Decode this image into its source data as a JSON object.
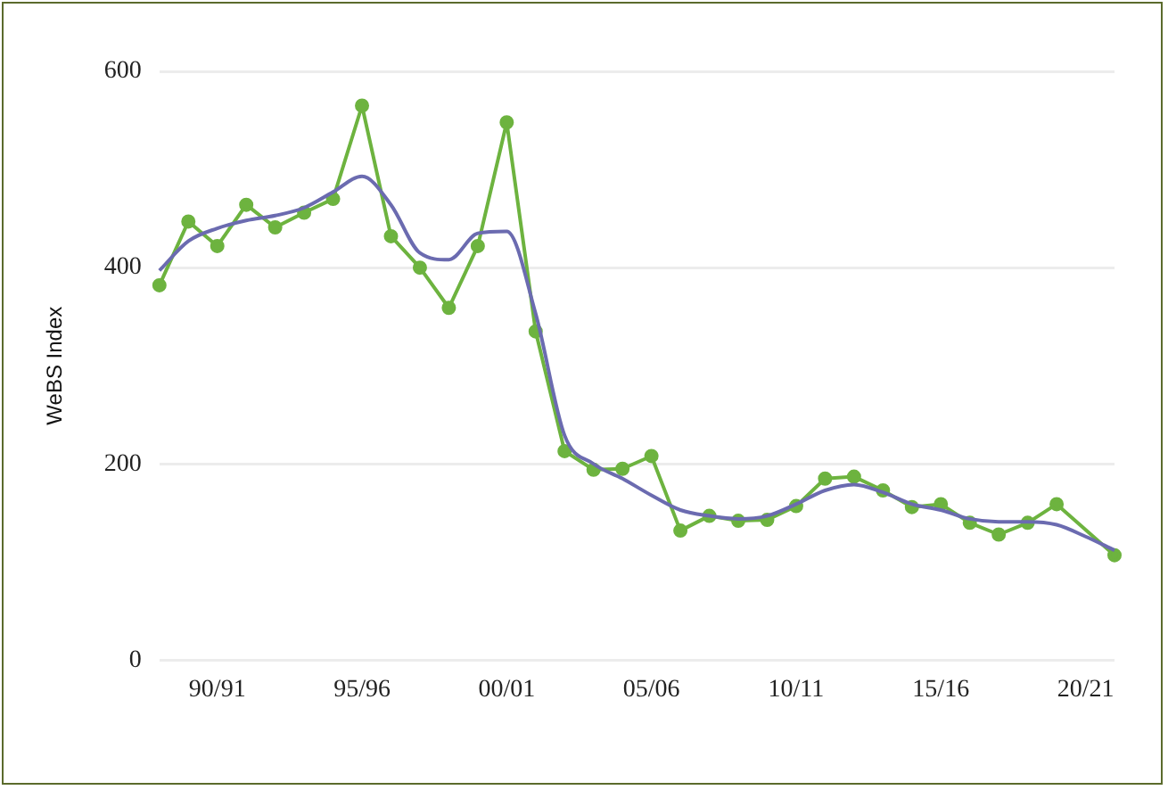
{
  "chart_data": {
    "type": "line",
    "ylabel": "WeBS Index",
    "categories": [
      null,
      null,
      "90/91",
      null,
      null,
      null,
      null,
      "95/96",
      null,
      null,
      null,
      null,
      "00/01",
      null,
      null,
      null,
      null,
      "05/06",
      null,
      null,
      null,
      null,
      "10/11",
      null,
      null,
      null,
      null,
      "15/16",
      null,
      null,
      null,
      null,
      "20/21",
      null
    ],
    "series": [
      {
        "color": "#6db33f",
        "marker": "circle",
        "values": [
          382,
          447,
          422,
          464,
          441,
          456,
          470,
          565,
          432,
          400,
          359,
          422,
          548,
          335,
          213,
          194,
          195,
          208,
          132,
          147,
          142,
          143,
          157,
          185,
          187,
          173,
          156,
          159,
          140,
          128,
          140,
          159,
          null,
          107
        ]
      },
      {
        "color": "#6b6bb0",
        "marker": "none",
        "values": [
          397,
          427,
          440,
          448,
          453,
          461,
          477,
          493,
          464,
          415,
          408,
          435,
          437,
          353,
          229,
          200,
          185,
          168,
          153,
          147,
          144,
          147,
          159,
          173,
          179,
          171,
          159,
          153,
          144,
          141,
          141,
          138,
          126,
          112
        ]
      }
    ],
    "ylim": [
      0,
      600
    ],
    "yticks": [
      0,
      200,
      400,
      600
    ],
    "grid": "y",
    "legend": false,
    "line_style": "solid"
  }
}
